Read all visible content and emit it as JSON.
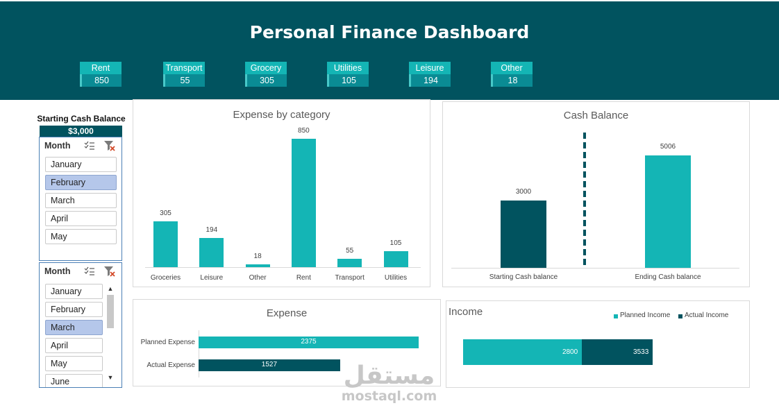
{
  "dashboard": {
    "title": "Personal Finance Dashboard",
    "kpis": [
      {
        "label": "Rent",
        "value": "850"
      },
      {
        "label": "Transport",
        "value": "55"
      },
      {
        "label": "Grocery",
        "value": "305"
      },
      {
        "label": "Utilities",
        "value": "105"
      },
      {
        "label": "Leisure",
        "value": "194"
      },
      {
        "label": "Other",
        "value": "18"
      }
    ]
  },
  "starting_cash": {
    "title": "Starting Cash Balance",
    "value": "$3,000"
  },
  "slicers": [
    {
      "title": "Month",
      "multi_select_icon": "multi-select-icon",
      "clear_filter_icon": "clear-filter-icon",
      "items": [
        "January",
        "February",
        "March",
        "April",
        "May"
      ],
      "selected": "February"
    },
    {
      "title": "Month",
      "multi_select_icon": "multi-select-icon",
      "clear_filter_icon": "clear-filter-icon",
      "items": [
        "January",
        "February",
        "March",
        "April",
        "May",
        "June"
      ],
      "selected": "March"
    }
  ],
  "colors": {
    "header": "#01535f",
    "teal": "#14b5b5",
    "dark_teal": "#01535f",
    "kpi_value": "#0a8b94"
  },
  "watermark": {
    "arabic": "مستقل",
    "latin": "mostaql.com"
  },
  "chart_data": [
    {
      "type": "bar",
      "title": "Expense by category",
      "categories": [
        "Groceries",
        "Leisure",
        "Other",
        "Rent",
        "Transport",
        "Utilities"
      ],
      "values": [
        305,
        194,
        18,
        850,
        55,
        105
      ],
      "ylim": [
        0,
        850
      ],
      "color": "#14b5b5"
    },
    {
      "type": "bar",
      "title": "Cash Balance",
      "categories": [
        "Starting Cash balance",
        "Ending Cash balance"
      ],
      "values": [
        3000,
        5006
      ],
      "ylim": [
        0,
        5006
      ],
      "colors": [
        "#01535f",
        "#14b5b5"
      ]
    },
    {
      "type": "bar",
      "orientation": "horizontal",
      "title": "Expense",
      "categories": [
        "Planned Expense",
        "Actual Expense"
      ],
      "values": [
        2375,
        1527
      ],
      "xlim": [
        0,
        2375
      ],
      "colors": [
        "#14b5b5",
        "#01535f"
      ]
    },
    {
      "type": "bar",
      "orientation": "horizontal",
      "stacked": true,
      "title": "Income",
      "series": [
        {
          "name": "Planned Income",
          "values": [
            2800
          ],
          "color": "#14b5b5"
        },
        {
          "name": "Actual Income",
          "values": [
            3533
          ],
          "color": "#01535f"
        }
      ],
      "legend": "top-right"
    }
  ]
}
